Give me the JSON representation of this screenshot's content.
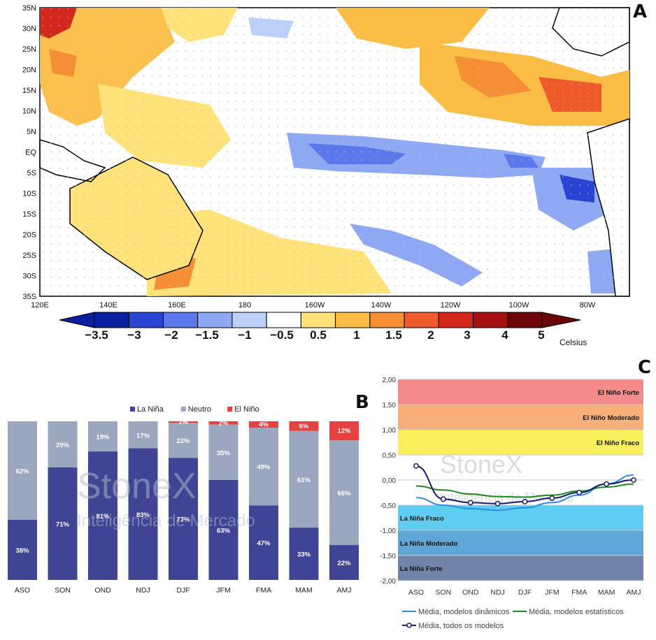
{
  "panels": {
    "a": "A",
    "b": "B",
    "c": "C"
  },
  "colors": {
    "la_nina": "#3f4594",
    "neutro": "#9ba6bf",
    "el_nino": "#e8403f",
    "dyn": "#2f8de0",
    "stat": "#1e8a1e",
    "all": "#1a1a6e",
    "band_forte_el": "#f48a8a",
    "band_mod_el": "#f8b07a",
    "band_fraco_el": "#f7f05a",
    "band_fraco_la": "#5fcdf2",
    "band_mod_la": "#5ea6d8",
    "band_forte_la": "#6f84a8"
  },
  "map": {
    "lat_labels": [
      "35N",
      "30N",
      "25N",
      "20N",
      "15N",
      "10N",
      "5N",
      "EQ",
      "5S",
      "10S",
      "15S",
      "20S",
      "25S",
      "30S",
      "35S"
    ],
    "lon_labels": [
      "120E",
      "140E",
      "160E",
      "180",
      "160W",
      "140W",
      "120W",
      "100W",
      "80W"
    ],
    "colorbar_labels": [
      "−3.5",
      "−3",
      "−2",
      "−1.5",
      "−1",
      "−0.5",
      "0.5",
      "1",
      "1.5",
      "2",
      "3",
      "4",
      "5"
    ],
    "colorbar_colors": [
      "#0a1f9e",
      "#2745d2",
      "#5a78ea",
      "#8ea8f4",
      "#bcd0fa",
      "#ffffff",
      "#ffe27a",
      "#fbbd44",
      "#f68e35",
      "#ee5a2a",
      "#d3261c",
      "#a51010",
      "#6b0606"
    ],
    "unit": "Celsius"
  },
  "chart_data": [
    {
      "type": "bar",
      "stacked": true,
      "categories": [
        "ASO",
        "SON",
        "OND",
        "NDJ",
        "DJF",
        "JFM",
        "FMA",
        "MAM",
        "AMJ"
      ],
      "series": [
        {
          "name": "La Niña",
          "values": [
            38,
            71,
            81,
            83,
            77,
            63,
            47,
            33,
            22
          ]
        },
        {
          "name": "Neutro",
          "values": [
            62,
            29,
            19,
            17,
            22,
            35,
            49,
            61,
            66
          ]
        },
        {
          "name": "El Niño",
          "values": [
            0,
            0,
            0,
            0,
            1,
            2,
            4,
            6,
            12
          ]
        }
      ],
      "labels": {
        "La Niña": [
          "38%",
          "71%",
          "81%",
          "83%",
          "77%",
          "63%",
          "47%",
          "33%",
          "22%"
        ],
        "Neutro": [
          "62%",
          "29%",
          "19%",
          "17%",
          "22%",
          "35%",
          "49%",
          "61%",
          "66%"
        ],
        "El Niño": [
          "",
          "",
          "",
          "",
          "1%",
          "2%",
          "4%",
          "6%",
          "12%"
        ]
      },
      "ylim": [
        0,
        100
      ],
      "legend_position": "top",
      "watermark": {
        "brand": "StoneX",
        "subtitle": "Inteligência de Mercado"
      }
    },
    {
      "type": "line",
      "x": [
        "ASO",
        "SON",
        "OND",
        "NDJ",
        "DJF",
        "JFM",
        "FMA",
        "MAM",
        "AMJ"
      ],
      "ylim": [
        -2.0,
        2.0
      ],
      "yticks": [
        "2,00",
        "1,50",
        "1,00",
        "0,50",
        "0,00",
        "-0,50",
        "-1,00",
        "-1,50",
        "-2,00"
      ],
      "bands": [
        {
          "label": "El Niño Forte",
          "from": 1.5,
          "to": 2.0
        },
        {
          "label": "El Niño Moderado",
          "from": 1.0,
          "to": 1.5
        },
        {
          "label": "El Niño Fraco",
          "from": 0.5,
          "to": 1.0
        },
        {
          "label": "La Niña Fraco",
          "from": -1.0,
          "to": -0.5
        },
        {
          "label": "La Niña Moderado",
          "from": -1.5,
          "to": -1.0
        },
        {
          "label": "La Niña Forte",
          "from": -2.0,
          "to": -1.5
        }
      ],
      "series": [
        {
          "name": "Média, modelos dinâmicos",
          "values": [
            -0.35,
            -0.5,
            -0.57,
            -0.6,
            -0.55,
            -0.45,
            -0.3,
            -0.08,
            0.1
          ]
        },
        {
          "name": "Média, modelos estatísticos",
          "values": [
            -0.12,
            -0.2,
            -0.28,
            -0.33,
            -0.34,
            -0.3,
            -0.22,
            -0.14,
            -0.08
          ]
        },
        {
          "name": "Média, todos os modelos",
          "values": [
            0.28,
            -0.38,
            -0.45,
            -0.47,
            -0.43,
            -0.36,
            -0.25,
            -0.08,
            0.0
          ]
        }
      ],
      "legend_position": "bottom",
      "grid": true,
      "watermark": {
        "brand": "StoneX",
        "subtitle": "Inteligência de Mercado"
      }
    }
  ]
}
